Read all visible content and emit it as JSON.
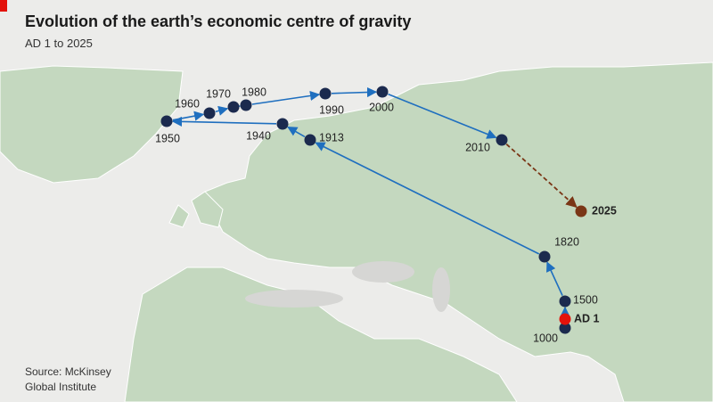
{
  "header": {
    "title": "Evolution of the earth’s economic centre of gravity",
    "subtitle": "AD 1 to 2025"
  },
  "points": [
    {
      "label": "AD 1"
    },
    {
      "label": "1000"
    },
    {
      "label": "1500"
    },
    {
      "label": "1820"
    },
    {
      "label": "1913"
    },
    {
      "label": "1940"
    },
    {
      "label": "1950"
    },
    {
      "label": "1960"
    },
    {
      "label": "1970"
    },
    {
      "label": "1980"
    },
    {
      "label": "1990"
    },
    {
      "label": "2000"
    },
    {
      "label": "2010"
    },
    {
      "label": "2025"
    }
  ],
  "source": {
    "line1": "Source: McKinsey",
    "line2": "Global Institute"
  }
}
